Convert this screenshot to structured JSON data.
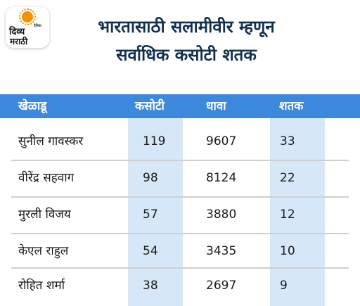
{
  "logo": {
    "line1": "दिव्य",
    "small": "दैनिक",
    "line2": "मराठी"
  },
  "title": {
    "line1": "भारतासाठी सलामीवीर म्हणून",
    "line2": "सर्वाधिक कसोटी शतक"
  },
  "table": {
    "headers": {
      "player": "खेळाडू",
      "tests": "कसोटी",
      "runs": "धावा",
      "centuries": "शतक"
    },
    "rows": [
      {
        "player": "सुनील गावस्कर",
        "tests": "119",
        "runs": "9607",
        "centuries": "33"
      },
      {
        "player": "वीरेंद्र सहवाग",
        "tests": "98",
        "runs": "8124",
        "centuries": "22"
      },
      {
        "player": "मुरली विजय",
        "tests": "57",
        "runs": "3880",
        "centuries": "12"
      },
      {
        "player": "केएल राहुल",
        "tests": "54",
        "runs": "3435",
        "centuries": "10"
      },
      {
        "player": "रोहित शर्मा",
        "tests": "38",
        "runs": "2697",
        "centuries": "9"
      }
    ]
  },
  "colors": {
    "header_bg": "#3b88dd",
    "highlight_col": "#d6e7f8",
    "title": "#12304f",
    "logo_sun": "#f39200"
  }
}
